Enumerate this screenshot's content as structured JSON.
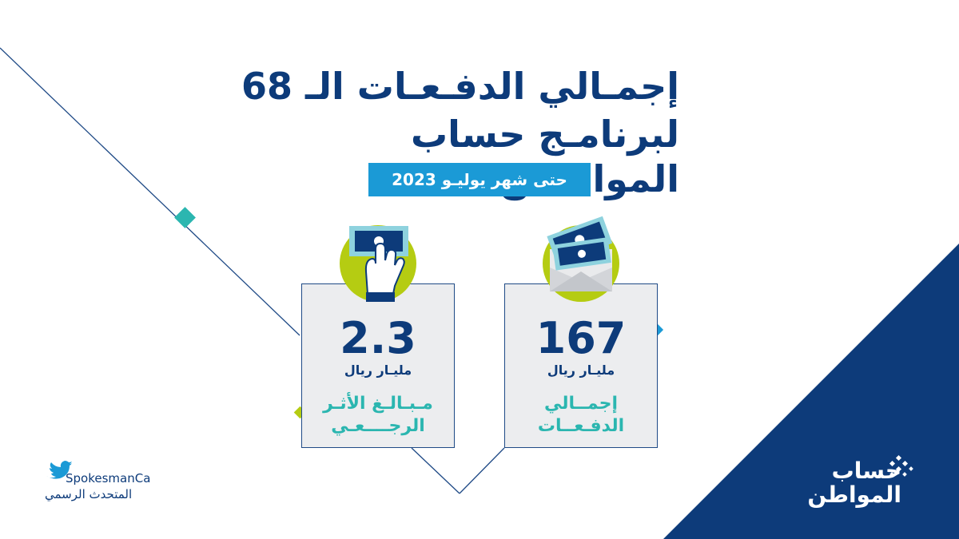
{
  "header": {
    "title_line1": "إجمـالي الدفـعـات الـ 68",
    "title_line2": "لبرنامـج حساب المواطــن",
    "subtitle": "حتى شهر يوليـو 2023"
  },
  "cards": [
    {
      "value": "167",
      "unit": "مليـار ريال",
      "label_line1": "إجمــالي",
      "label_line2": "الدفـعــات",
      "icon": "envelope-money-icon"
    },
    {
      "value": "2.3",
      "unit": "مليـار ريال",
      "label_line1": "مـبـالـغ الأثـر",
      "label_line2": "الرجــــعـي",
      "icon": "hand-money-icon"
    }
  ],
  "footer": {
    "handle": "SpokesmanCa",
    "org": "المتحدث الرسمي"
  },
  "logo": {
    "line1": "حساب",
    "line2": "المواطن"
  },
  "colors": {
    "navy": "#0d3b7a",
    "blue": "#1b9ad6",
    "teal": "#2bb6b0",
    "lime": "#b5cc12",
    "card_bg": "#ecedef"
  }
}
